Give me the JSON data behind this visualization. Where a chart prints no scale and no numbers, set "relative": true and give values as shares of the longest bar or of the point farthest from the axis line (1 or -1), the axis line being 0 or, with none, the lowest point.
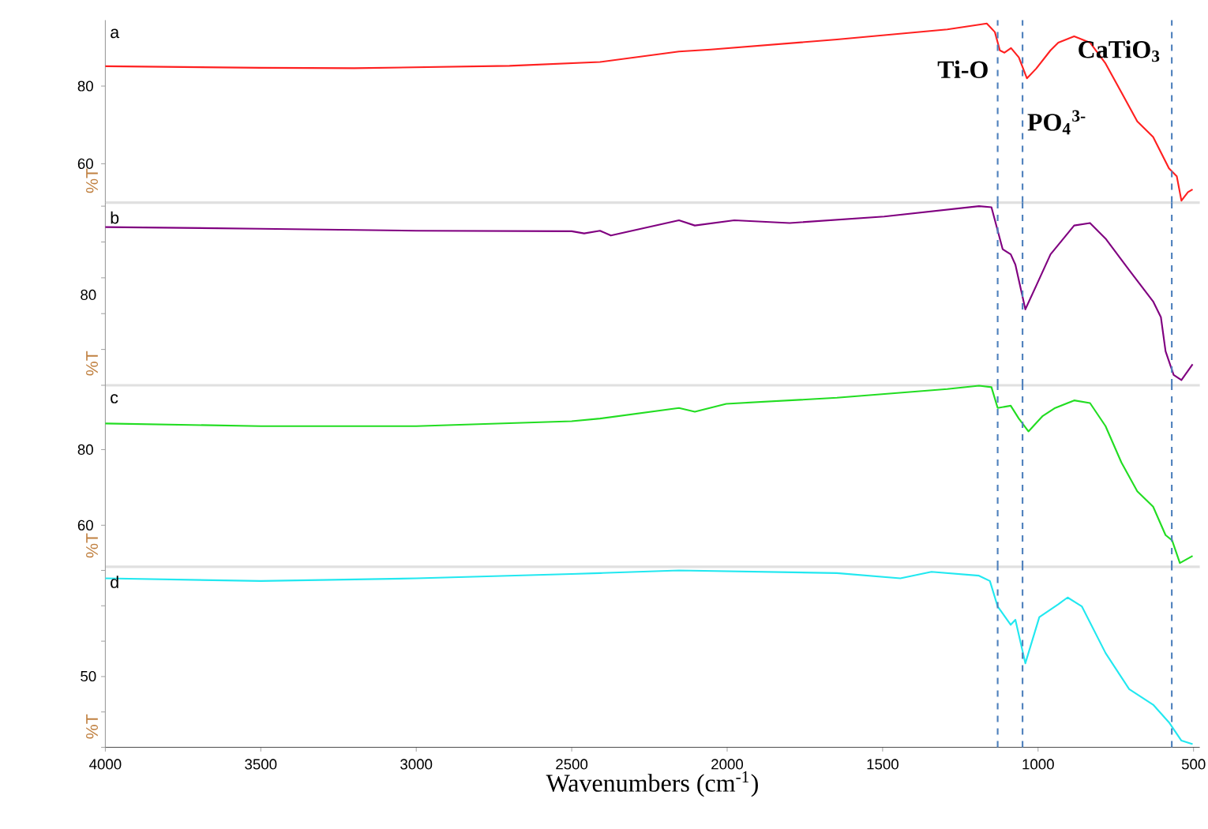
{
  "chart_data": [
    {
      "type": "line",
      "annotations": [
        "a"
      ],
      "ylabel": "%T",
      "tick_labels": "y",
      "xlim": [
        4000,
        480
      ],
      "xticks": [
        4000,
        3500,
        3000,
        2500,
        2000,
        1500,
        1000,
        500
      ],
      "ylim": [
        50,
        97
      ],
      "yticks": [
        60,
        80
      ],
      "x": [
        4000,
        3500,
        3200,
        2700,
        2409,
        2155,
        2053,
        1647,
        1292,
        1190,
        1165,
        1139,
        1123,
        1108,
        1087,
        1062,
        1036,
        1006,
        960,
        935,
        884,
        833,
        783,
        732,
        681,
        630,
        579,
        554,
        539,
        518,
        503
      ],
      "series": [
        {
          "color": "#ff2020",
          "values": [
            85.1,
            84.7,
            84.6,
            85.2,
            86.2,
            88.9,
            89.4,
            92.0,
            94.6,
            95.8,
            96.1,
            93.9,
            89.2,
            88.6,
            89.8,
            87.4,
            82.0,
            84.5,
            89.2,
            91.2,
            92.8,
            91.2,
            85.8,
            78.4,
            70.9,
            66.9,
            58.8,
            56.8,
            50.5,
            52.7,
            53.4
          ]
        }
      ],
      "ref_lines": [
        {
          "axis": "x",
          "value": 1130,
          "color": "#4f81bd",
          "line_style": "dashed",
          "label": "Ti-O"
        },
        {
          "axis": "x",
          "value": 1050,
          "color": "#4f81bd",
          "line_style": "dashed",
          "label": "PO$_{4}$$^{3-}$"
        },
        {
          "axis": "x",
          "value": 570,
          "color": "#4f81bd",
          "line_style": "dashed",
          "label": "CaTiO$_{3}$"
        }
      ]
    },
    {
      "type": "line",
      "relative": true,
      "annotations": [
        "b",
        "80"
      ],
      "ylabel": "%T",
      "tick_labels": "y",
      "xlim": [
        4000,
        480
      ],
      "xticks": [
        4000,
        3500,
        3000,
        2500,
        2000,
        1500,
        1000,
        500
      ],
      "x": [
        4000,
        3500,
        3000,
        2500,
        2460,
        2409,
        2374,
        2155,
        2104,
        1977,
        1799,
        1495,
        1190,
        1150,
        1114,
        1088,
        1073,
        1041,
        1006,
        960,
        884,
        833,
        783,
        707,
        630,
        605,
        590,
        564,
        539,
        503
      ],
      "series": [
        {
          "color": "#800080",
          "values": [
            0.883,
            0.874,
            0.863,
            0.86,
            0.848,
            0.863,
            0.836,
            0.921,
            0.892,
            0.921,
            0.906,
            0.942,
            1,
            0.994,
            0.76,
            0.731,
            0.673,
            0.424,
            0.556,
            0.731,
            0.892,
            0.906,
            0.819,
            0.643,
            0.468,
            0.38,
            0.19,
            0.058,
            0.029,
            0.117
          ]
        }
      ],
      "ref_lines": [
        {
          "axis": "x",
          "value": 1130,
          "color": "#4f81bd",
          "line_style": "dashed"
        },
        {
          "axis": "x",
          "value": 1050,
          "color": "#4f81bd",
          "line_style": "dashed"
        },
        {
          "axis": "x",
          "value": 570,
          "color": "#4f81bd",
          "line_style": "dashed"
        }
      ]
    },
    {
      "type": "line",
      "annotations": [
        "c"
      ],
      "ylabel": "%T",
      "tick_labels": "y",
      "xlim": [
        4000,
        480
      ],
      "xticks": [
        4000,
        3500,
        3000,
        2500,
        2000,
        1500,
        1000,
        500
      ],
      "ylim": [
        49,
        97
      ],
      "yticks": [
        60,
        80
      ],
      "x": [
        4000,
        3500,
        3000,
        2500,
        2409,
        2155,
        2104,
        2003,
        1647,
        1292,
        1190,
        1150,
        1130,
        1088,
        1062,
        1031,
        985,
        945,
        884,
        833,
        783,
        732,
        681,
        630,
        590,
        569,
        544,
        503
      ],
      "series": [
        {
          "color": "#22dd22",
          "values": [
            86.9,
            86.2,
            86.2,
            87.5,
            88.2,
            91.0,
            90.0,
            92.1,
            93.7,
            96.0,
            96.9,
            96.5,
            91.0,
            91.6,
            88.2,
            84.8,
            88.9,
            91.0,
            93.0,
            92.3,
            86.2,
            76.6,
            69.0,
            64.9,
            57.4,
            56.0,
            50.0,
            51.9
          ]
        }
      ],
      "ref_lines": [
        {
          "axis": "x",
          "value": 1130,
          "color": "#4f81bd",
          "line_style": "dashed"
        },
        {
          "axis": "x",
          "value": 1050,
          "color": "#4f81bd",
          "line_style": "dashed"
        },
        {
          "axis": "x",
          "value": 570,
          "color": "#4f81bd",
          "line_style": "dashed"
        }
      ]
    },
    {
      "type": "line",
      "relative": true,
      "annotations": [
        "d",
        "50"
      ],
      "ylabel": "%T",
      "xlabel": "Wavenumbers (cm$^{-1}$)",
      "xlim": [
        4000,
        480
      ],
      "xticks": [
        4000,
        3500,
        3000,
        2500,
        2000,
        1500,
        1000,
        500
      ],
      "x": [
        4000,
        3500,
        3000,
        2500,
        2409,
        2155,
        1647,
        1443,
        1343,
        1190,
        1155,
        1130,
        1088,
        1073,
        1041,
        996,
        935,
        905,
        859,
        783,
        707,
        630,
        579,
        539,
        503
      ],
      "series": [
        {
          "color": "#22e8f0",
          "values": [
            0.955,
            0.94,
            0.955,
            0.98,
            0.985,
            1,
            0.985,
            0.955,
            0.992,
            0.97,
            0.94,
            0.796,
            0.693,
            0.721,
            0.475,
            0.736,
            0.809,
            0.847,
            0.796,
            0.533,
            0.329,
            0.241,
            0.141,
            0.038,
            0.018
          ]
        }
      ],
      "ref_lines": [
        {
          "axis": "x",
          "value": 1130,
          "color": "#4f81bd",
          "line_style": "dashed"
        },
        {
          "axis": "x",
          "value": 1050,
          "color": "#4f81bd",
          "line_style": "dashed"
        },
        {
          "axis": "x",
          "value": 570,
          "color": "#4f81bd",
          "line_style": "dashed"
        }
      ]
    }
  ]
}
